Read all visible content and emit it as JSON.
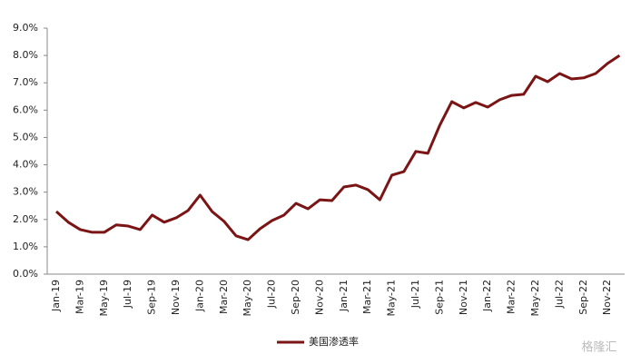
{
  "chart_data": {
    "type": "line",
    "categories": [
      "Jan-19",
      null,
      "Mar-19",
      null,
      "May-19",
      null,
      "Jul-19",
      null,
      "Sep-19",
      null,
      "Nov-19",
      null,
      "Jan-20",
      null,
      "Mar-20",
      null,
      "May-20",
      null,
      "Jul-20",
      null,
      "Sep-20",
      null,
      "Nov-20",
      null,
      "Jan-21",
      null,
      "Mar-21",
      null,
      "May-21",
      null,
      "Jul-21",
      null,
      "Sep-21",
      null,
      "Nov-21",
      null,
      "Jan-22",
      null,
      "Mar-22",
      null,
      "May-22",
      null,
      "Jul-22",
      null,
      "Sep-22",
      null,
      "Nov-22",
      null
    ],
    "series": [
      {
        "name": "美国渗透率",
        "color": "#7b1414",
        "values": [
          2.29,
          1.9,
          1.63,
          1.53,
          1.53,
          1.8,
          1.76,
          1.63,
          2.16,
          1.9,
          2.06,
          2.33,
          2.89,
          2.29,
          1.93,
          1.4,
          1.26,
          1.66,
          1.96,
          2.16,
          2.59,
          2.39,
          2.72,
          2.69,
          3.19,
          3.26,
          3.09,
          2.72,
          3.62,
          3.75,
          4.49,
          4.42,
          5.45,
          6.31,
          6.08,
          6.28,
          6.11,
          6.38,
          6.54,
          6.58,
          7.24,
          7.04,
          7.34,
          7.14,
          7.18,
          7.34,
          7.71,
          8.0
        ]
      }
    ],
    "ylim": [
      0,
      9
    ],
    "yticks": [
      {
        "value": 0,
        "label": "0.0%"
      },
      {
        "value": 1,
        "label": "1.0%"
      },
      {
        "value": 2,
        "label": "2.0%"
      },
      {
        "value": 3,
        "label": "3.0%"
      },
      {
        "value": 4,
        "label": "4.0%"
      },
      {
        "value": 5,
        "label": "5.0%"
      },
      {
        "value": 6,
        "label": "6.0%"
      },
      {
        "value": 7,
        "label": "7.0%"
      },
      {
        "value": 8,
        "label": "8.0%"
      },
      {
        "value": 9,
        "label": "9.0%"
      }
    ],
    "grid": false,
    "legend": "bottom",
    "watermark": "格隆汇"
  }
}
